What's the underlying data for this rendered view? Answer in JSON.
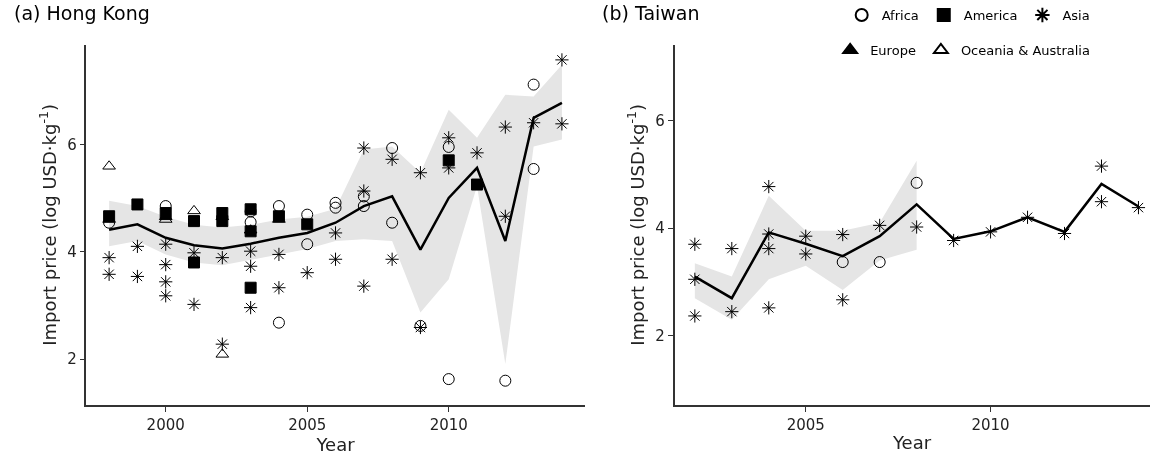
{
  "chart_data": [
    {
      "type": "scatter",
      "title": "(a) Hong Kong",
      "xlabel": "Year",
      "ylabel": "Import price (log USD·kg$^{-1}$)",
      "xlim": [
        1997.2,
        2014.8
      ],
      "ylim": [
        1.15,
        7.85
      ],
      "xticks": [
        2000,
        2005,
        2010
      ],
      "yticks": [
        2,
        4,
        6
      ],
      "legend": "top right",
      "series": [
        {
          "name": "Africa",
          "marker": "circle-open",
          "color": "#000000",
          "x": [
            1998,
            2000,
            2003,
            2003,
            2004,
            2004,
            2005,
            2005,
            2006,
            2006,
            2007,
            2007,
            2008,
            2008,
            2009,
            2010,
            2010,
            2012,
            2013,
            2013
          ],
          "values": [
            4.54,
            4.85,
            4.55,
            4.75,
            4.85,
            2.68,
            4.69,
            4.14,
            4.91,
            4.82,
            4.85,
            5.03,
            5.93,
            4.54,
            2.62,
            5.95,
            1.63,
            1.6,
            7.11,
            5.54
          ]
        },
        {
          "name": "America",
          "marker": "square",
          "color": "#000000",
          "x": [
            1998,
            1999,
            2000,
            2001,
            2001,
            2002,
            2002,
            2003,
            2003,
            2003,
            2004,
            2005,
            2010,
            2011
          ],
          "values": [
            4.66,
            4.88,
            4.72,
            4.57,
            3.8,
            4.72,
            4.57,
            4.79,
            4.38,
            3.33,
            4.66,
            4.51,
            5.7,
            5.25
          ]
        },
        {
          "name": "Asia",
          "marker": "cross",
          "color": "#000000",
          "x": [
            1998,
            1998,
            1999,
            1999,
            2000,
            2000,
            2000,
            2000,
            2001,
            2001,
            2002,
            2002,
            2003,
            2003,
            2003,
            2004,
            2004,
            2005,
            2006,
            2006,
            2007,
            2007,
            2007,
            2008,
            2008,
            2009,
            2009,
            2010,
            2010,
            2011,
            2012,
            2012,
            2013,
            2014,
            2014
          ],
          "values": [
            3.89,
            3.58,
            4.1,
            3.54,
            4.14,
            3.76,
            3.44,
            3.18,
            3.98,
            3.02,
            3.89,
            2.28,
            4.01,
            3.73,
            2.96,
            3.95,
            3.33,
            3.61,
            4.35,
            3.86,
            5.93,
            5.13,
            3.36,
            5.72,
            3.86,
            5.47,
            2.59,
            6.12,
            5.56,
            5.84,
            6.32,
            4.66,
            6.4,
            7.57,
            6.38
          ]
        },
        {
          "name": "Europe",
          "marker": "triangle",
          "color": "#000000",
          "x": [
            1998,
            2000,
            2002,
            2003,
            2004
          ],
          "values": [
            4.6,
            4.65,
            4.65,
            4.4,
            4.6
          ]
        },
        {
          "name": "Oceania & Australia",
          "marker": "triangle-open",
          "color": "#000000",
          "x": [
            1998,
            2000,
            2001,
            2002
          ],
          "values": [
            5.59,
            4.6,
            4.76,
            2.09
          ]
        },
        {
          "type": "line",
          "color": "#000000",
          "x": [
            1998,
            1999,
            2000,
            2001,
            2002,
            2003,
            2004,
            2005,
            2006,
            2007,
            2008,
            2009,
            2010,
            2011,
            2012,
            2013,
            2014
          ],
          "values": [
            4.41,
            4.51,
            4.26,
            4.12,
            4.06,
            4.15,
            4.26,
            4.35,
            4.54,
            4.85,
            5.03,
            4.04,
            5.0,
            5.56,
            4.2,
            6.49,
            6.77
          ],
          "lower": [
            4.1,
            4.2,
            3.95,
            3.8,
            3.75,
            3.85,
            3.95,
            4.05,
            4.2,
            4.23,
            4.2,
            2.87,
            3.49,
            5.22,
            1.91,
            5.96,
            6.09
          ],
          "upper": [
            4.95,
            4.85,
            4.65,
            4.5,
            4.45,
            4.5,
            4.6,
            4.65,
            4.8,
            5.9,
            5.96,
            5.47,
            6.64,
            6.12,
            6.92,
            6.89,
            7.48
          ]
        }
      ]
    },
    {
      "type": "scatter",
      "title": "(b) Taiwan",
      "xlabel": "Year",
      "ylabel": "Import price (log USD·kg$^{-1}$)",
      "xlim": [
        2001.45,
        2014.3
      ],
      "ylim": [
        0.72,
        7.4
      ],
      "xticks": [
        2005,
        2010
      ],
      "yticks": [
        2,
        4,
        6
      ],
      "series": [
        {
          "marker": "circle-open",
          "color": "#000000",
          "x": [
            2006,
            2007,
            2008
          ],
          "values": [
            3.37,
            3.37,
            4.84
          ]
        },
        {
          "marker": "cross",
          "color": "#000000",
          "x": [
            2002,
            2002,
            2002,
            2003,
            2003,
            2004,
            2004,
            2004,
            2004,
            2005,
            2005,
            2006,
            2006,
            2007,
            2008,
            2009,
            2010,
            2011,
            2012,
            2013,
            2013,
            2014
          ],
          "values": [
            3.7,
            3.05,
            2.37,
            3.62,
            2.45,
            4.77,
            3.89,
            3.62,
            2.52,
            3.85,
            3.52,
            3.88,
            2.67,
            4.05,
            4.02,
            3.77,
            3.93,
            4.2,
            3.9,
            5.15,
            4.49,
            4.38
          ]
        },
        {
          "type": "line",
          "color": "#000000",
          "x": [
            2002,
            2003,
            2004,
            2005,
            2006,
            2007,
            2008,
            2009,
            2010,
            2011,
            2012,
            2013,
            2014
          ],
          "values": [
            3.1,
            2.7,
            3.92,
            3.71,
            3.48,
            3.85,
            4.44,
            3.8,
            3.94,
            4.2,
            3.93,
            4.82,
            4.4
          ],
          "lower": [
            2.7,
            2.3,
            3.05,
            3.3,
            2.85,
            3.4,
            3.6,
            null,
            null,
            null,
            null,
            null,
            null
          ],
          "upper": [
            3.35,
            3.1,
            4.6,
            3.95,
            3.95,
            4.1,
            5.25,
            null,
            null,
            null,
            null,
            null,
            null
          ]
        }
      ]
    }
  ]
}
